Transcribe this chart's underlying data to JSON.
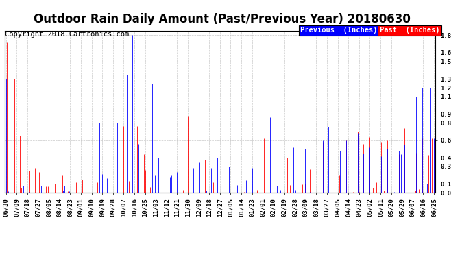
{
  "title": "Outdoor Rain Daily Amount (Past/Previous Year) 20180630",
  "copyright": "Copyright 2018 Cartronics.com",
  "legend_previous": "Previous  (Inches)",
  "legend_past": "Past  (Inches)",
  "bar_color_prev": "#0000FF",
  "bar_color_past": "#FF0000",
  "background_color": "#ffffff",
  "plot_bg_color": "#ffffff",
  "grid_color": "#aaaaaa",
  "yticks": [
    0.0,
    0.1,
    0.3,
    0.4,
    0.6,
    0.8,
    0.9,
    1.1,
    1.2,
    1.3,
    1.5,
    1.6,
    1.8
  ],
  "ylim": [
    0.0,
    1.85
  ],
  "title_fontsize": 12,
  "copyright_fontsize": 7.5,
  "tick_fontsize": 6.5,
  "legend_fontsize": 7.5,
  "xtick_labels": [
    "06/30",
    "07/09",
    "07/18",
    "07/27",
    "08/05",
    "08/14",
    "08/23",
    "09/01",
    "09/10",
    "09/19",
    "09/28",
    "10/07",
    "10/16",
    "10/25",
    "11/03",
    "11/12",
    "11/21",
    "11/30",
    "12/09",
    "12/18",
    "12/27",
    "01/05",
    "01/14",
    "01/23",
    "02/01",
    "02/10",
    "02/19",
    "02/28",
    "03/09",
    "03/18",
    "03/27",
    "04/05",
    "04/14",
    "04/23",
    "05/02",
    "05/11",
    "05/20",
    "05/29",
    "06/07",
    "06/16",
    "06/25"
  ]
}
